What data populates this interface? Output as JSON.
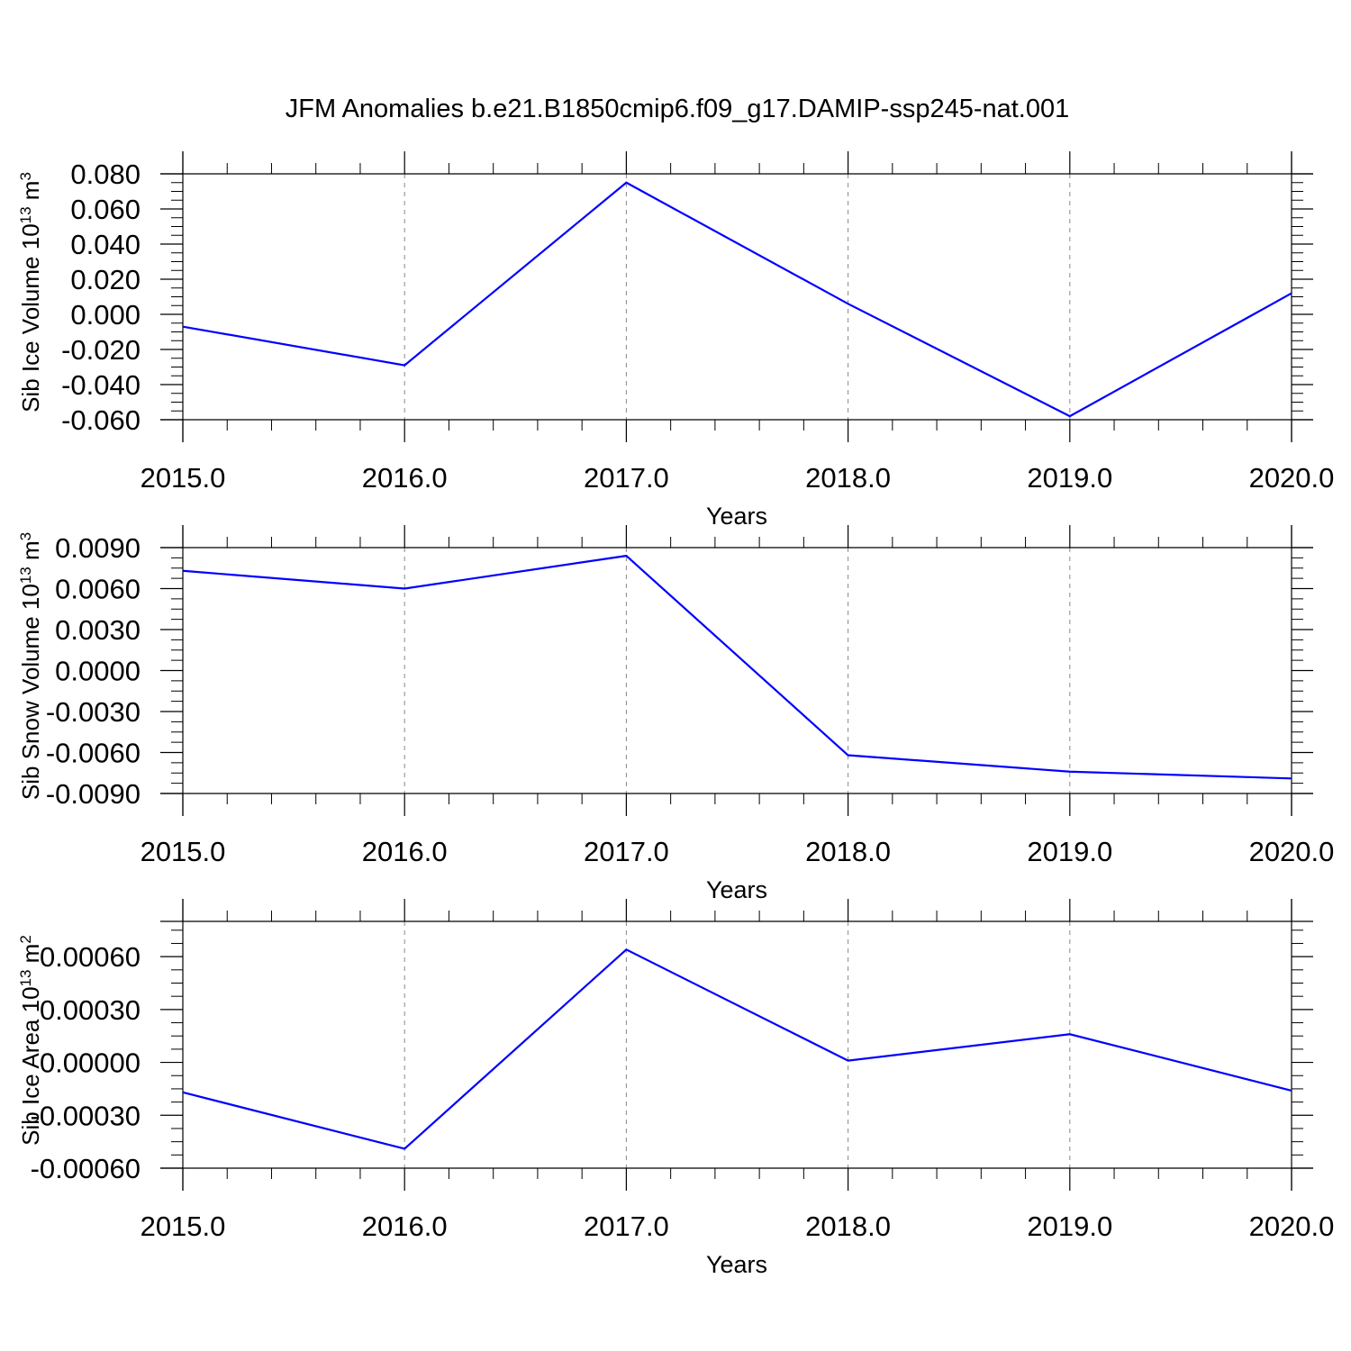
{
  "colors": {
    "series": "#0000ff",
    "axes": "#000000",
    "grid": "#888888",
    "background": "#ffffff"
  },
  "title": "JFM Anomalies b.e21.B1850cmip6.f09_g17.DAMIP-ssp245-nat.001",
  "chart_data": [
    {
      "type": "line",
      "xlabel": "Years",
      "ylabel": {
        "text": "Sib Ice Volume 10",
        "exp": "13",
        "unit": " m",
        "unit_exp": "3"
      },
      "x": [
        2015,
        2016,
        2017,
        2018,
        2019,
        2020
      ],
      "series": [
        {
          "values": [
            -0.007,
            -0.029,
            0.075,
            0.006,
            -0.058,
            0.012
          ]
        }
      ],
      "xlim": [
        2015,
        2020
      ],
      "ylim": [
        -0.06,
        0.08
      ],
      "xticks": [
        "2015.0",
        "2016.0",
        "2017.0",
        "2018.0",
        "2019.0",
        "2020.0"
      ],
      "yticks": [
        {
          "value": 0.08,
          "label": "0.080"
        },
        {
          "value": 0.06,
          "label": "0.060"
        },
        {
          "value": 0.04,
          "label": "0.040"
        },
        {
          "value": 0.02,
          "label": "0.020"
        },
        {
          "value": 0.0,
          "label": "0.000"
        },
        {
          "value": -0.02,
          "label": "-0.020"
        },
        {
          "value": -0.04,
          "label": "-0.040"
        },
        {
          "value": -0.06,
          "label": "-0.060"
        }
      ],
      "grid": "vertical dashed at major x ticks"
    },
    {
      "type": "line",
      "xlabel": "Years",
      "ylabel": {
        "text": "Sib Snow Volume 10",
        "exp": "13",
        "unit": " m",
        "unit_exp": "3"
      },
      "x": [
        2015,
        2016,
        2017,
        2018,
        2019,
        2020
      ],
      "series": [
        {
          "values": [
            0.0073,
            0.006,
            0.0084,
            -0.0062,
            -0.0074,
            -0.0079
          ]
        }
      ],
      "xlim": [
        2015,
        2020
      ],
      "ylim": [
        -0.009,
        0.009
      ],
      "xticks": [
        "2015.0",
        "2016.0",
        "2017.0",
        "2018.0",
        "2019.0",
        "2020.0"
      ],
      "yticks": [
        {
          "value": 0.009,
          "label": "0.0090"
        },
        {
          "value": 0.006,
          "label": "0.0060"
        },
        {
          "value": 0.003,
          "label": "0.0030"
        },
        {
          "value": 0.0,
          "label": "0.0000"
        },
        {
          "value": -0.003,
          "label": "-0.0030"
        },
        {
          "value": -0.006,
          "label": "-0.0060"
        },
        {
          "value": -0.009,
          "label": "-0.0090"
        }
      ],
      "grid": "vertical dashed at major x ticks"
    },
    {
      "type": "line",
      "xlabel": "Years",
      "ylabel": {
        "text": "Sib Ice Area 10",
        "exp": "13",
        "unit": " m",
        "unit_exp": "2"
      },
      "x": [
        2015,
        2016,
        2017,
        2018,
        2019,
        2020
      ],
      "series": [
        {
          "values": [
            -0.00017,
            -0.00049,
            0.00064,
            1e-05,
            0.00016,
            -0.00016
          ]
        }
      ],
      "xlim": [
        2015,
        2020
      ],
      "ylim": [
        -0.0006,
        0.0008
      ],
      "xticks": [
        "2015.0",
        "2016.0",
        "2017.0",
        "2018.0",
        "2019.0",
        "2020.0"
      ],
      "yticks": [
        {
          "value": 0.0006,
          "label": "0.00060"
        },
        {
          "value": 0.0003,
          "label": "0.00030"
        },
        {
          "value": 0.0,
          "label": "0.00000"
        },
        {
          "value": -0.0003,
          "label": "-0.00030"
        },
        {
          "value": -0.0006,
          "label": "-0.00060"
        }
      ],
      "grid": "vertical dashed at major x ticks"
    }
  ]
}
